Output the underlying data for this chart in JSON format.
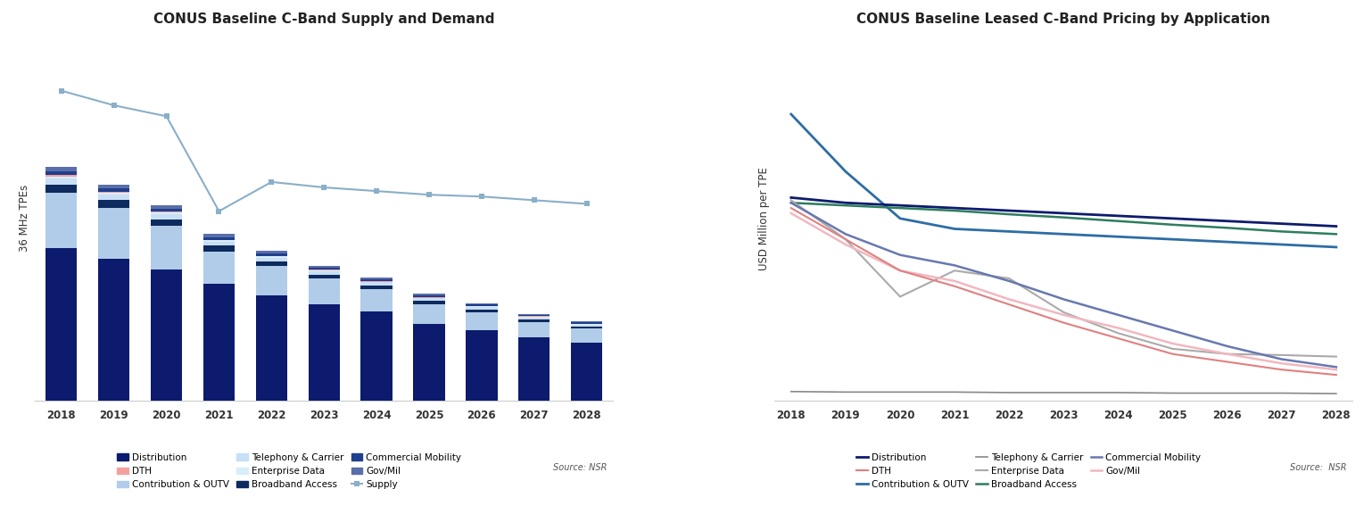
{
  "years": [
    2018,
    2019,
    2020,
    2021,
    2022,
    2023,
    2024,
    2025,
    2026,
    2027,
    2028
  ],
  "left_title": "CONUS Baseline C-Band Supply and Demand",
  "right_title": "CONUS Baseline Leased C-Band Pricing by Application",
  "left_ylabel": "36 MHz TPEs",
  "right_ylabel": "USD Million per TPE",
  "bar_data": {
    "Distribution": [
      4.2,
      3.9,
      3.6,
      3.2,
      2.9,
      2.65,
      2.45,
      2.1,
      1.95,
      1.75,
      1.6
    ],
    "Contribution_OUTV": [
      1.5,
      1.4,
      1.2,
      0.9,
      0.8,
      0.7,
      0.62,
      0.55,
      0.48,
      0.42,
      0.38
    ],
    "Telephony_Carrier": [
      0.18,
      0.16,
      0.14,
      0.12,
      0.1,
      0.09,
      0.08,
      0.07,
      0.06,
      0.05,
      0.05
    ],
    "Broadband_Access": [
      0.22,
      0.2,
      0.18,
      0.15,
      0.13,
      0.11,
      0.1,
      0.09,
      0.08,
      0.07,
      0.06
    ],
    "Enterprise_Data": [
      0.05,
      0.04,
      0.04,
      0.03,
      0.03,
      0.03,
      0.02,
      0.02,
      0.02,
      0.02,
      0.02
    ],
    "DTH": [
      0.04,
      0.03,
      0.03,
      0.02,
      0.02,
      0.02,
      0.02,
      0.01,
      0.01,
      0.01,
      0.01
    ],
    "Commercial_Mobility": [
      0.1,
      0.09,
      0.08,
      0.07,
      0.06,
      0.05,
      0.05,
      0.04,
      0.04,
      0.03,
      0.03
    ],
    "Gov_Mil": [
      0.12,
      0.11,
      0.1,
      0.08,
      0.07,
      0.06,
      0.05,
      0.05,
      0.04,
      0.04,
      0.03
    ]
  },
  "supply_line": [
    8.5,
    8.1,
    7.8,
    5.2,
    6.0,
    5.85,
    5.75,
    5.65,
    5.6,
    5.5,
    5.4
  ],
  "bar_colors": {
    "Distribution": "#0d1b6e",
    "Contribution_OUTV": "#b0cce8",
    "Telephony_Carrier": "#c8dff5",
    "Broadband_Access": "#0d2b5e",
    "Enterprise_Data": "#d8eef8",
    "DTH": "#f4a0a0",
    "Commercial_Mobility": "#1f3f8f",
    "Gov_Mil": "#5a6fa8"
  },
  "supply_color": "#8aafc8",
  "line_data": {
    "Contribution_OUTV": [
      5.5,
      4.4,
      3.5,
      3.3,
      3.25,
      3.2,
      3.15,
      3.1,
      3.05,
      3.0,
      2.95
    ],
    "Distribution": [
      3.9,
      3.8,
      3.75,
      3.7,
      3.65,
      3.6,
      3.55,
      3.5,
      3.45,
      3.4,
      3.35
    ],
    "Broadband_Access": [
      3.8,
      3.75,
      3.7,
      3.65,
      3.58,
      3.52,
      3.45,
      3.38,
      3.32,
      3.25,
      3.2
    ],
    "Enterprise_Data": [
      3.85,
      3.1,
      2.0,
      2.5,
      2.35,
      1.7,
      1.3,
      1.0,
      0.9,
      0.88,
      0.85
    ],
    "Commercial_Mobility": [
      3.8,
      3.2,
      2.8,
      2.6,
      2.3,
      1.95,
      1.65,
      1.35,
      1.05,
      0.8,
      0.65
    ],
    "Gov_Mil": [
      3.6,
      3.0,
      2.5,
      2.3,
      1.95,
      1.65,
      1.4,
      1.1,
      0.9,
      0.72,
      0.6
    ],
    "Telephony_Carrier": [
      0.18,
      0.17,
      0.17,
      0.17,
      0.16,
      0.16,
      0.16,
      0.15,
      0.15,
      0.15,
      0.14
    ],
    "DTH": [
      3.7,
      3.1,
      2.5,
      2.2,
      1.85,
      1.5,
      1.2,
      0.9,
      0.75,
      0.6,
      0.5
    ]
  },
  "line_colors": {
    "Distribution": "#0d1b6e",
    "DTH": "#e08080",
    "Contribution_OUTV": "#2e6da4",
    "Telephony_Carrier": "#888888",
    "Enterprise_Data": "#aaaaaa",
    "Broadband_Access": "#2e7d5e",
    "Commercial_Mobility": "#6878b0",
    "Gov_Mil": "#f0b8c0"
  },
  "line_widths": {
    "Distribution": 2.0,
    "Contribution_OUTV": 2.0,
    "Broadband_Access": 1.8,
    "Enterprise_Data": 1.5,
    "Commercial_Mobility": 1.8,
    "Gov_Mil": 1.8,
    "Telephony_Carrier": 1.2,
    "DTH": 1.5
  }
}
